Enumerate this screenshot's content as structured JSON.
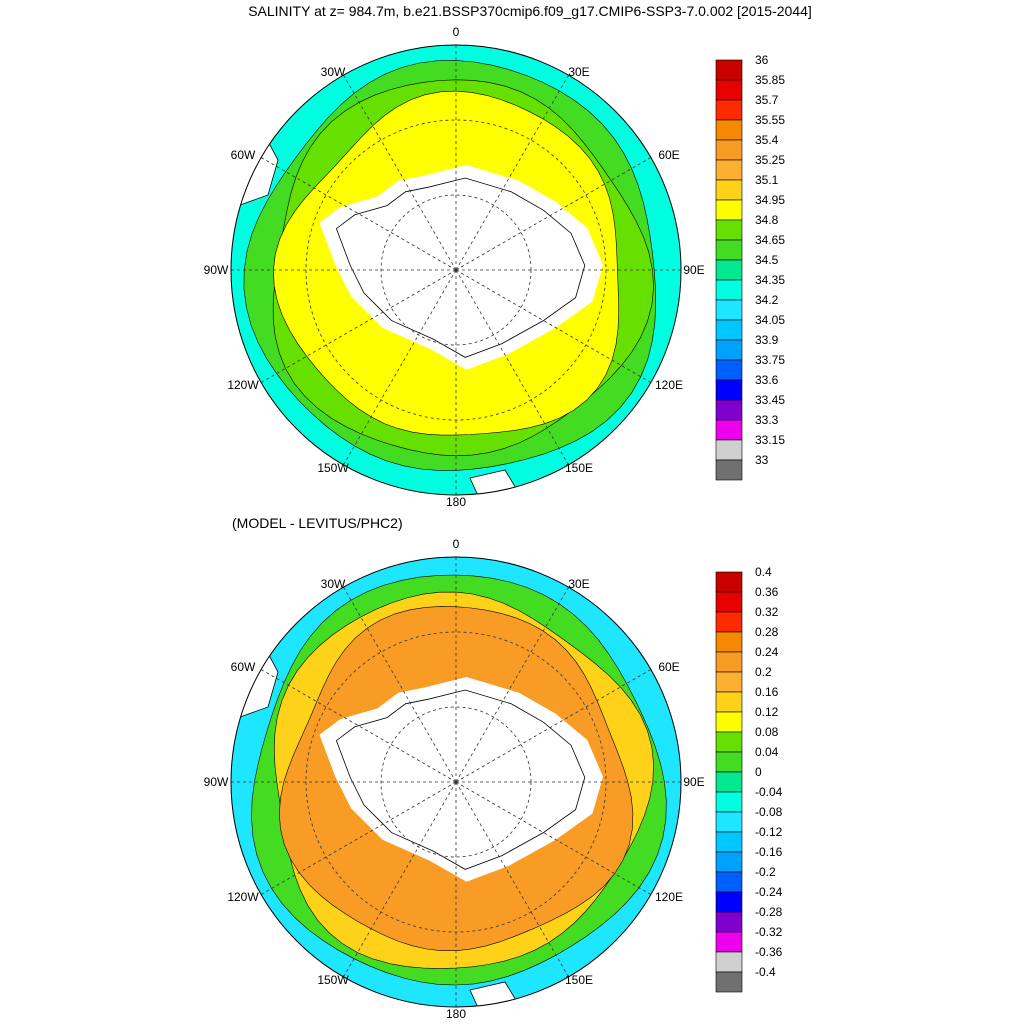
{
  "title": "SALINITY at z= 984.7m, b.e21.BSSP370cmip6.f09_g17.CMIP6-SSP3-7.0.002 [2015-2044]",
  "subtitle": "(MODEL - LEVITUS/PHC2)",
  "lon_labels": [
    "0",
    "30E",
    "60E",
    "90E",
    "120E",
    "150E",
    "180",
    "150W",
    "120W",
    "90W",
    "60W",
    "30W"
  ],
  "colors": {
    "land": "#ffffff",
    "coast": "#000000"
  },
  "panels": [
    {
      "name": "salinity-map",
      "legend": {
        "labels": [
          "36",
          "35.85",
          "35.7",
          "35.55",
          "35.4",
          "35.25",
          "35.1",
          "34.95",
          "34.8",
          "34.65",
          "34.5",
          "34.35",
          "34.2",
          "34.05",
          "33.9",
          "33.75",
          "33.6",
          "33.45",
          "33.3",
          "33.15",
          "33"
        ],
        "colors": [
          "#c80000",
          "#e60000",
          "#ff2a00",
          "#f58a00",
          "#f99c25",
          "#fbb033",
          "#ffd21a",
          "#ffff00",
          "#66e000",
          "#44dc22",
          "#00e890",
          "#00ffe0",
          "#1ee6ff",
          "#00c8ff",
          "#00a0ff",
          "#0060ff",
          "#0000ff",
          "#8000d0",
          "#ee00ee",
          "#d0d0d0",
          "#707070"
        ]
      },
      "fields": {
        "outer": "#00ffe0",
        "ring2": "#44dc22",
        "ring1": "#66e000",
        "inner": "#ffff00"
      }
    },
    {
      "name": "difference-map",
      "legend": {
        "labels": [
          "0.4",
          "0.36",
          "0.32",
          "0.28",
          "0.24",
          "0.2",
          "0.16",
          "0.12",
          "0.08",
          "0.04",
          "0",
          "-0.04",
          "-0.08",
          "-0.12",
          "-0.16",
          "-0.2",
          "-0.24",
          "-0.28",
          "-0.32",
          "-0.36",
          "-0.4"
        ],
        "colors": [
          "#c80000",
          "#e60000",
          "#ff2a00",
          "#f58a00",
          "#f99c25",
          "#fbb033",
          "#ffd21a",
          "#ffff00",
          "#66e000",
          "#44dc22",
          "#00e890",
          "#00ffe0",
          "#1ee6ff",
          "#00c8ff",
          "#00a0ff",
          "#0060ff",
          "#0000ff",
          "#8000d0",
          "#ee00ee",
          "#d0d0d0",
          "#707070"
        ]
      },
      "fields": {
        "outer": "#1ee6ff",
        "ring2": "#44dc22",
        "ring1": "#ffd21a",
        "inner": "#f99c25"
      }
    }
  ]
}
